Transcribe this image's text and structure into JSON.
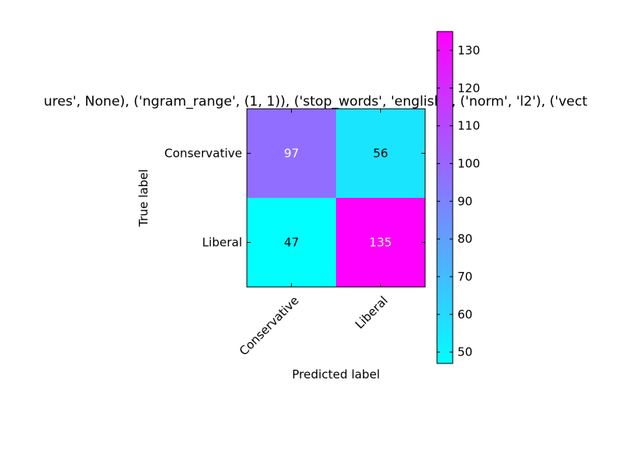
{
  "chart_data": {
    "type": "heatmap",
    "title": "ures', None), ('ngram_range', (1, 1)), ('stop_words', 'english'), ('norm', 'l2'), ('vect",
    "xlabel": "Predicted label",
    "ylabel": "True label",
    "x_categories": [
      "Conservative",
      "Liberal"
    ],
    "y_categories": [
      "Conservative",
      "Liberal"
    ],
    "values": [
      [
        97,
        56
      ],
      [
        47,
        135
      ]
    ],
    "colormap": "cool",
    "color_low": "#00ffff",
    "color_high": "#ff00ff",
    "value_range": [
      47,
      135
    ],
    "colorbar_ticks": [
      50,
      60,
      70,
      80,
      90,
      100,
      110,
      120,
      130
    ],
    "grid": false,
    "legend": "colorbar-right"
  }
}
